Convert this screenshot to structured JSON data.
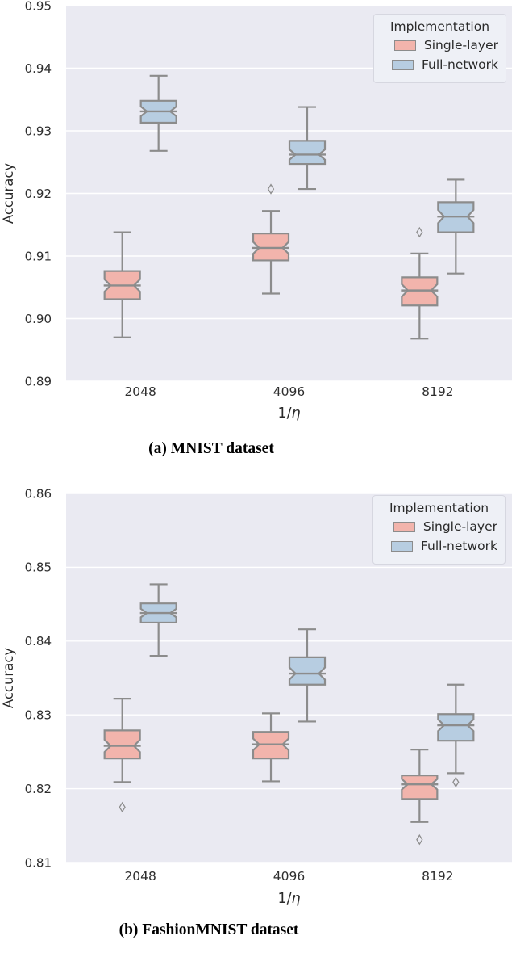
{
  "page": {
    "background": "#ffffff"
  },
  "style": {
    "plot_bg": "#eaeaf2",
    "grid_color": "#ffffff",
    "box_edge_color": "#8c8c8c",
    "tick_label_color": "#2e2e2e",
    "axis_label_color": "#2a2a2a"
  },
  "chart_data": [
    {
      "type": "box",
      "caption": "(a) MNIST dataset",
      "xlabel": "1/η",
      "ylabel": "Accuracy",
      "legend_title": "Implementation",
      "legend_position": "upper-right",
      "grid": true,
      "categories": [
        "2048",
        "4096",
        "8192"
      ],
      "ylim": [
        0.89,
        0.95
      ],
      "yticks": [
        "0.89",
        "0.90",
        "0.91",
        "0.92",
        "0.93",
        "0.94",
        "0.95"
      ],
      "series": [
        {
          "name": "Single-layer",
          "color": "#f2b4ac",
          "boxes": [
            {
              "whislo": 0.897,
              "q1": 0.9031,
              "med": 0.9053,
              "q3": 0.9076,
              "whishi": 0.9138,
              "fliers": []
            },
            {
              "whislo": 0.904,
              "q1": 0.9093,
              "med": 0.9113,
              "q3": 0.9136,
              "whishi": 0.9172,
              "fliers": [
                0.9207
              ]
            },
            {
              "whislo": 0.8968,
              "q1": 0.9021,
              "med": 0.9045,
              "q3": 0.9066,
              "whishi": 0.9104,
              "fliers": [
                0.9138
              ]
            }
          ]
        },
        {
          "name": "Full-network",
          "color": "#b7cde1",
          "boxes": [
            {
              "whislo": 0.9268,
              "q1": 0.9313,
              "med": 0.9331,
              "q3": 0.9348,
              "whishi": 0.9388,
              "fliers": []
            },
            {
              "whislo": 0.9207,
              "q1": 0.9247,
              "med": 0.9262,
              "q3": 0.9284,
              "whishi": 0.9338,
              "fliers": []
            },
            {
              "whislo": 0.9072,
              "q1": 0.9138,
              "med": 0.9163,
              "q3": 0.9186,
              "whishi": 0.9222,
              "fliers": []
            }
          ]
        }
      ]
    },
    {
      "type": "box",
      "caption": "(b) FashionMNIST dataset",
      "xlabel": "1/η",
      "ylabel": "Accuracy",
      "legend_title": "Implementation",
      "legend_position": "upper-right",
      "grid": true,
      "categories": [
        "2048",
        "4096",
        "8192"
      ],
      "ylim": [
        0.81,
        0.86
      ],
      "yticks": [
        "0.81",
        "0.82",
        "0.83",
        "0.84",
        "0.85",
        "0.86"
      ],
      "series": [
        {
          "name": "Single-layer",
          "color": "#f2b4ac",
          "boxes": [
            {
              "whislo": 0.8209,
              "q1": 0.8241,
              "med": 0.8258,
              "q3": 0.8279,
              "whishi": 0.8322,
              "fliers": [
                0.8175
              ]
            },
            {
              "whislo": 0.821,
              "q1": 0.8241,
              "med": 0.826,
              "q3": 0.8277,
              "whishi": 0.8302,
              "fliers": []
            },
            {
              "whislo": 0.8155,
              "q1": 0.8186,
              "med": 0.8206,
              "q3": 0.8218,
              "whishi": 0.8253,
              "fliers": [
                0.8131
              ]
            }
          ]
        },
        {
          "name": "Full-network",
          "color": "#b7cde1",
          "boxes": [
            {
              "whislo": 0.838,
              "q1": 0.8425,
              "med": 0.8438,
              "q3": 0.8451,
              "whishi": 0.8477,
              "fliers": []
            },
            {
              "whislo": 0.8291,
              "q1": 0.8341,
              "med": 0.8356,
              "q3": 0.8378,
              "whishi": 0.8416,
              "fliers": []
            },
            {
              "whislo": 0.8221,
              "q1": 0.8265,
              "med": 0.8286,
              "q3": 0.8301,
              "whishi": 0.8341,
              "fliers": [
                0.8209
              ]
            }
          ]
        }
      ]
    }
  ]
}
